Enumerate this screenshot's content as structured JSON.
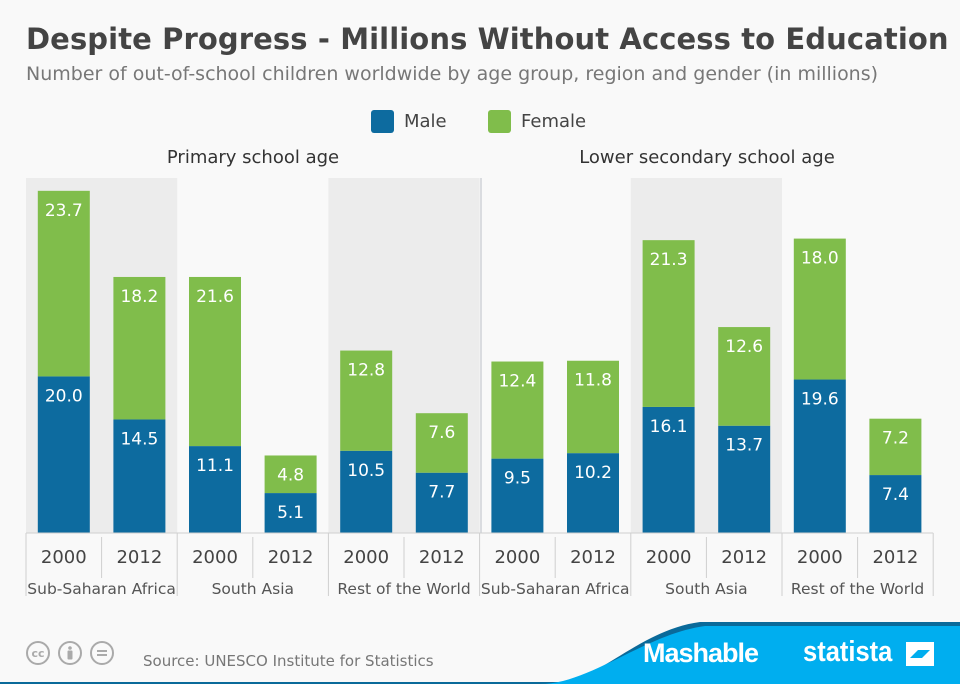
{
  "header": {
    "title": "Despite Progress - Millions Without Access to Education",
    "subtitle": "Number of out-of-school children worldwide by age group, region and gender (in millions)"
  },
  "legend": [
    {
      "label": "Male",
      "color": "#0d6b9f"
    },
    {
      "label": "Female",
      "color": "#80bd4b"
    }
  ],
  "footer": {
    "source": "Source: UNESCO Institute for Statistics",
    "license_icons": [
      "cc-icon",
      "attribution-icon",
      "no-derivatives-icon"
    ],
    "brand_1": "Mashable",
    "brand_2": "statista",
    "band_color": "#00aeef"
  },
  "chart_data": {
    "type": "bar",
    "stacked": true,
    "title": "Despite Progress - Millions Without Access to Education",
    "subtitle": "Number of out-of-school children worldwide by age group, region and gender (in millions)",
    "ylabel": "",
    "xlabel": "",
    "ylim": [
      0,
      45
    ],
    "grid": false,
    "legend_position": "top-center",
    "panels": [
      {
        "title": "Primary school age",
        "regions": [
          {
            "name": "Sub-Saharan Africa",
            "years": [
              "2000",
              "2012"
            ],
            "male": [
              20.0,
              14.5
            ],
            "female": [
              23.7,
              18.2
            ]
          },
          {
            "name": "South Asia",
            "years": [
              "2000",
              "2012"
            ],
            "male": [
              11.1,
              5.1
            ],
            "female": [
              21.6,
              4.8
            ]
          },
          {
            "name": "Rest of the World",
            "years": [
              "2000",
              "2012"
            ],
            "male": [
              10.5,
              7.7
            ],
            "female": [
              12.8,
              7.6
            ]
          }
        ]
      },
      {
        "title": "Lower secondary school age",
        "regions": [
          {
            "name": "Sub-Saharan Africa",
            "years": [
              "2000",
              "2012"
            ],
            "male": [
              9.5,
              10.2
            ],
            "female": [
              12.4,
              11.8
            ]
          },
          {
            "name": "South Asia",
            "years": [
              "2000",
              "2012"
            ],
            "male": [
              16.1,
              13.7
            ],
            "female": [
              21.3,
              12.6
            ]
          },
          {
            "name": "Rest of the World",
            "years": [
              "2000",
              "2012"
            ],
            "male": [
              19.6,
              7.4
            ],
            "female": [
              18.0,
              7.2
            ]
          }
        ]
      }
    ],
    "series": [
      {
        "name": "Male",
        "color": "#0d6b9f"
      },
      {
        "name": "Female",
        "color": "#80bd4b"
      }
    ]
  }
}
